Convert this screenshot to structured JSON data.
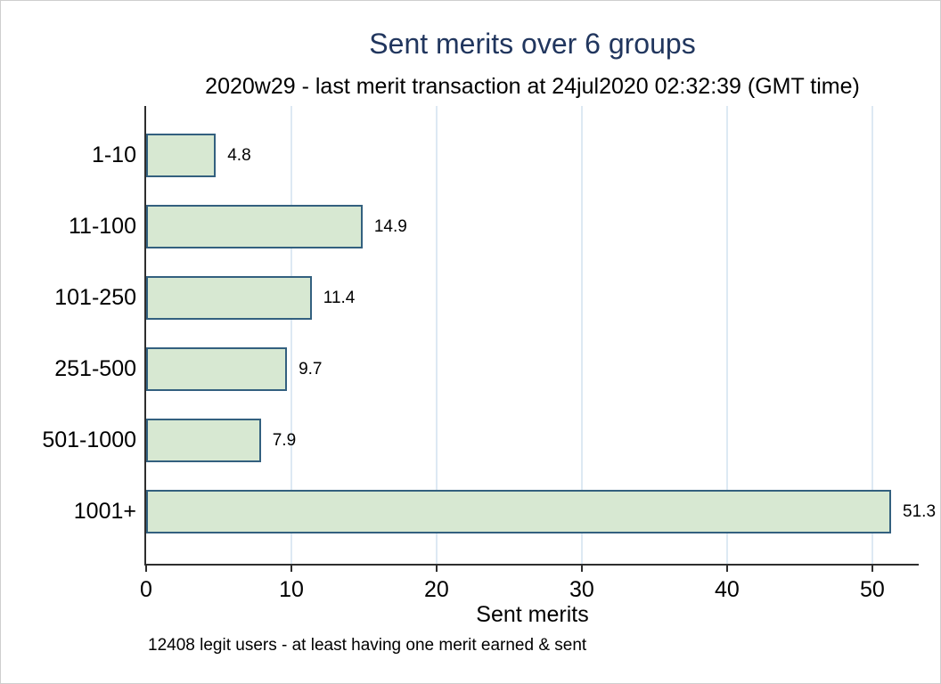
{
  "chart_data": {
    "type": "bar",
    "orientation": "horizontal",
    "title": "Sent merits over 6 groups",
    "subtitle": "2020w29 - last merit transaction at 24jul2020 02:32:39 (GMT time)",
    "categories": [
      "1-10",
      "11-100",
      "101-250",
      "251-500",
      "501-1000",
      "1001+"
    ],
    "values": [
      4.8,
      14.9,
      11.4,
      9.7,
      7.9,
      51.3
    ],
    "value_labels": [
      "4.8",
      "14.9",
      "11.4",
      "9.7",
      "7.9",
      "51.3"
    ],
    "xlabel": "Sent merits",
    "xticks": [
      0,
      10,
      20,
      30,
      40,
      50
    ],
    "xlim": [
      0,
      53.2
    ],
    "grid": true,
    "legend": "none",
    "note": "12408 legit users - at least having one merit earned & sent",
    "colors": {
      "title": "#21365e",
      "bar_fill": "#d7e8d2",
      "bar_border": "#33607f",
      "axis": "#2e2e2e",
      "gridline": "#dde9f3",
      "text": "#000000"
    }
  }
}
